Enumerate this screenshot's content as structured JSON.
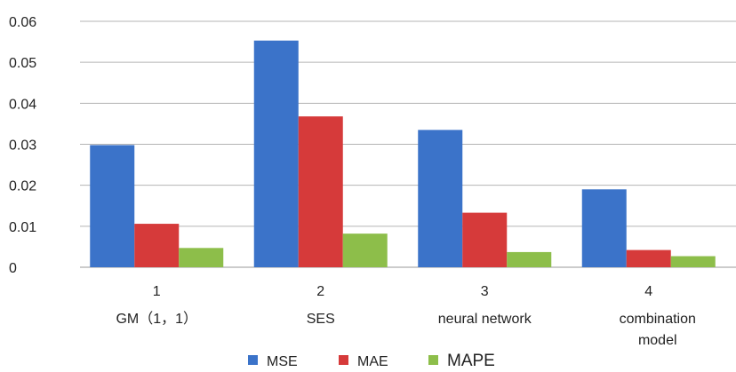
{
  "chart_data": {
    "type": "bar",
    "title": "",
    "xlabel": "",
    "ylabel": "",
    "ylim": [
      0,
      0.06
    ],
    "yticks": [
      "0",
      "0.01",
      "0.02",
      "0.03",
      "0.04",
      "0.05",
      "0.06"
    ],
    "grid": true,
    "legend_position": "bottom",
    "categories": [
      {
        "number": "1",
        "name_lines": [
          "GM（1，1）"
        ]
      },
      {
        "number": "2",
        "name_lines": [
          "SES"
        ]
      },
      {
        "number": "3",
        "name_lines": [
          "neural network"
        ]
      },
      {
        "number": "4",
        "name_lines": [
          "combination",
          "model"
        ]
      }
    ],
    "series": [
      {
        "name": "MSE",
        "color": "#3b73c9",
        "values": [
          0.0298,
          0.0553,
          0.0335,
          0.019
        ]
      },
      {
        "name": "MAE",
        "color": "#d63a3a",
        "values": [
          0.0106,
          0.0368,
          0.0133,
          0.0042
        ]
      },
      {
        "name": "MAPE",
        "color": "#8dbe4a",
        "values": [
          0.0047,
          0.0082,
          0.0037,
          0.0027
        ]
      }
    ]
  }
}
